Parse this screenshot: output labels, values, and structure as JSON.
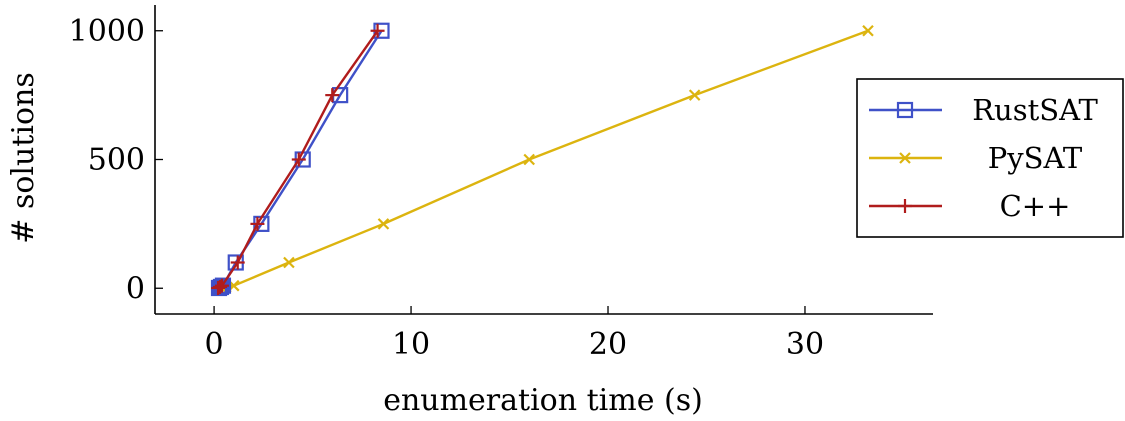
{
  "chart_data": {
    "type": "line",
    "xlabel": "enumeration time (s)",
    "ylabel": "# solutions",
    "xlim": [
      -3,
      36.5
    ],
    "ylim": [
      -100,
      1100
    ],
    "xticks": [
      0,
      10,
      20,
      30
    ],
    "yticks": [
      0,
      500,
      1000
    ],
    "xtick_labels": [
      "0",
      "10",
      "20",
      "30"
    ],
    "ytick_labels": [
      "0",
      "500",
      "1000"
    ],
    "grid": false,
    "legend_position": "right",
    "series": [
      {
        "name": "RustSAT",
        "color": "#3f51c8",
        "marker": "square",
        "points": [
          [
            0.25,
            1
          ],
          [
            0.35,
            5
          ],
          [
            0.45,
            10
          ],
          [
            1.1,
            100
          ],
          [
            2.4,
            250
          ],
          [
            4.5,
            500
          ],
          [
            6.4,
            750
          ],
          [
            8.5,
            1000
          ]
        ]
      },
      {
        "name": "PySAT",
        "color": "#dcb40f",
        "marker": "cross",
        "points": [
          [
            0.4,
            1
          ],
          [
            0.6,
            5
          ],
          [
            1.0,
            10
          ],
          [
            3.8,
            100
          ],
          [
            8.6,
            250
          ],
          [
            16.0,
            500
          ],
          [
            24.4,
            750
          ],
          [
            33.2,
            1000
          ]
        ]
      },
      {
        "name": "C++",
        "color": "#b01c1c",
        "marker": "plus",
        "points": [
          [
            0.2,
            1
          ],
          [
            0.3,
            5
          ],
          [
            0.4,
            10
          ],
          [
            1.2,
            100
          ],
          [
            2.2,
            250
          ],
          [
            4.3,
            500
          ],
          [
            6.0,
            750
          ],
          [
            8.3,
            1000
          ]
        ]
      }
    ]
  }
}
